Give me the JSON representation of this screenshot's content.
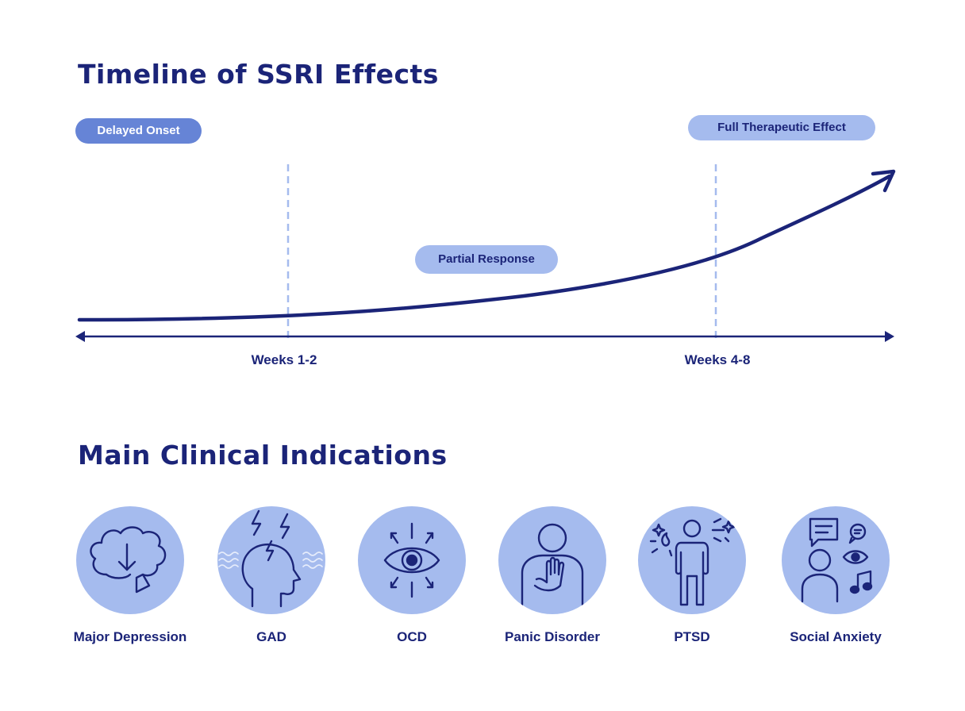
{
  "timeline": {
    "title": "Timeline of SSRI Effects",
    "labels": {
      "delayed_onset": "Delayed Onset",
      "partial_response": "Partial Response",
      "full_effect": "Full Therapeutic Effect"
    },
    "markers": [
      "Weeks 1-2",
      "Weeks 4-8"
    ],
    "colors": {
      "navy": "#1b2478",
      "dashed": "#a5bbee",
      "pill_dark": "#6684d6",
      "pill_light": "#a5bbee"
    }
  },
  "indications": {
    "title": "Main Clinical Indications",
    "items": [
      {
        "label": "Major Depression",
        "icon": "brain-down-arrow-icon"
      },
      {
        "label": "GAD",
        "icon": "head-lightning-icon"
      },
      {
        "label": "OCD",
        "icon": "eye-arrows-icon"
      },
      {
        "label": "Panic Disorder",
        "icon": "person-hand-chest-icon"
      },
      {
        "label": "PTSD",
        "icon": "person-sparks-icon"
      },
      {
        "label": "Social Anxiety",
        "icon": "person-chat-eye-music-icon"
      }
    ]
  }
}
